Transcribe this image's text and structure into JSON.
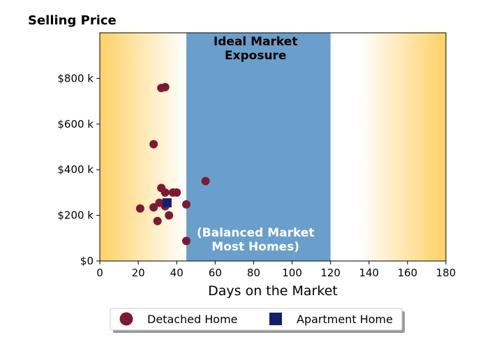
{
  "chart_data": {
    "type": "scatter",
    "title": "Selling Price",
    "xlabel": "Days on the Market",
    "ylabel": "",
    "xlim": [
      0,
      180
    ],
    "ylim": [
      0,
      1000
    ],
    "x_ticks": [
      0,
      20,
      40,
      60,
      80,
      100,
      120,
      140,
      160,
      180
    ],
    "y_ticks": [
      {
        "value": 0,
        "label": "$0"
      },
      {
        "value": 200,
        "label": "$200 k"
      },
      {
        "value": 400,
        "label": "$400 k"
      },
      {
        "value": 600,
        "label": "$600 k"
      },
      {
        "value": 800,
        "label": "$800 k"
      }
    ],
    "grid": false,
    "legend_position": "bottom-center",
    "shaded_regions": [
      {
        "name": "Ideal Market Exposure",
        "x": [
          45,
          120
        ],
        "color": "#6a9fcc"
      }
    ],
    "background_gradient": {
      "edge_color": "#ffd166",
      "center_color": "#ffffff"
    },
    "annotations": [
      {
        "lines": [
          "Ideal Market",
          "Exposure"
        ],
        "x": 81,
        "color": "#000000"
      },
      {
        "lines": [
          "(Balanced Market",
          "Most Homes)"
        ],
        "x": 81,
        "color": "#ffffff"
      }
    ],
    "series": [
      {
        "name": "Detached Home",
        "marker": "circle",
        "color": "#7b1a33",
        "points": [
          [
            21,
            230
          ],
          [
            28,
            235
          ],
          [
            28,
            512
          ],
          [
            30,
            175
          ],
          [
            31,
            255
          ],
          [
            32,
            320
          ],
          [
            32,
            758
          ],
          [
            34,
            762
          ],
          [
            34,
            300
          ],
          [
            34,
            240
          ],
          [
            36,
            200
          ],
          [
            38,
            300
          ],
          [
            40,
            300
          ],
          [
            45,
            248
          ],
          [
            45,
            88
          ],
          [
            55,
            350
          ]
        ]
      },
      {
        "name": "Apartment Home",
        "marker": "square",
        "color": "#15206b",
        "points": [
          [
            35,
            255
          ]
        ]
      }
    ]
  }
}
